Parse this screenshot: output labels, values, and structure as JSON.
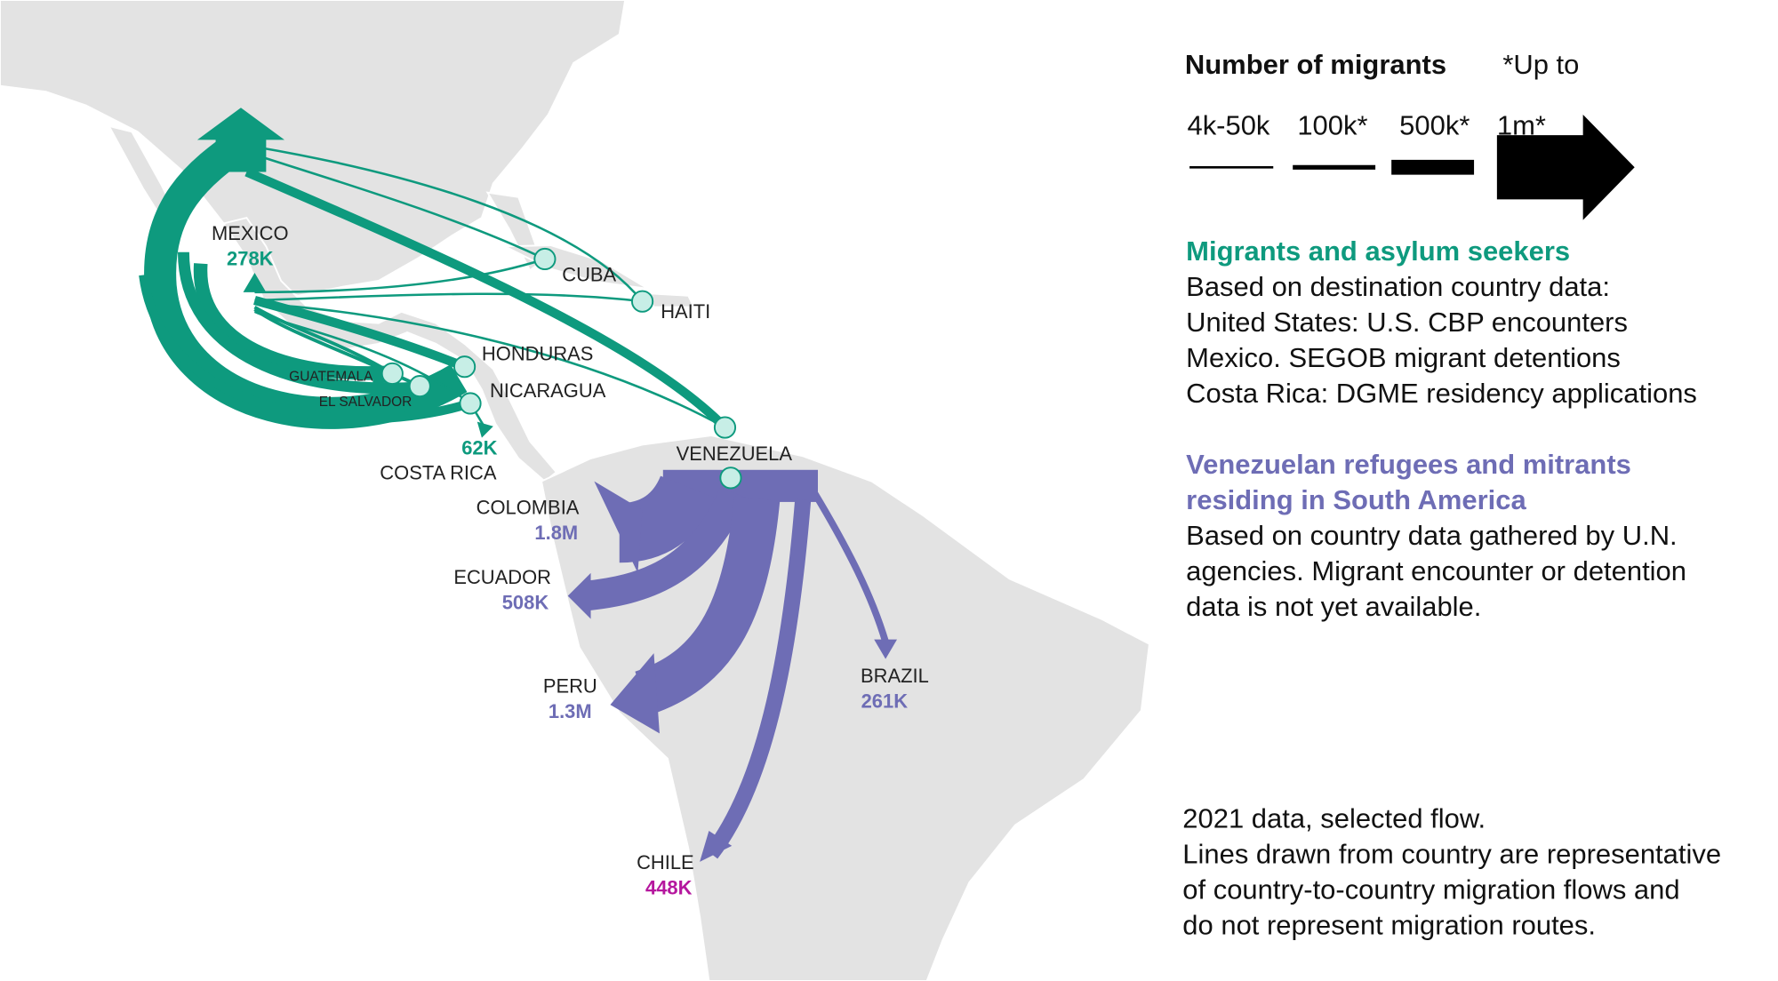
{
  "legend": {
    "title": "Number of migrants",
    "note": "*Up to",
    "sizes": [
      "4k-50k",
      "100k*",
      "500k*",
      "1m*"
    ]
  },
  "sections": [
    {
      "title": [
        "Migrants and asylum seekers"
      ],
      "lines": [
        "Based on destination country data:",
        "United States: U.S. CBP encounters",
        "Mexico. SEGOB migrant detentions",
        "Costa Rica: DGME residency applications"
      ]
    },
    {
      "title": [
        "Venezuelan refugees and mitrants",
        "residing in South America"
      ],
      "lines": [
        "Based on country data gathered by U.N.",
        "agencies. Migrant encounter or detention",
        "data is not yet available."
      ]
    }
  ],
  "footnote": [
    "2021 data, selected flow.",
    "Lines drawn from country are representative",
    "of country-to-country migration flows and",
    "do not represent migration routes."
  ],
  "places": [
    {
      "name": "MEXICO",
      "value": "278K"
    },
    {
      "name": "CUBA"
    },
    {
      "name": "HAITI"
    },
    {
      "name": "HONDURAS"
    },
    {
      "name": "GUATEMALA"
    },
    {
      "name": "EL SALVADOR"
    },
    {
      "name": "NICARAGUA"
    },
    {
      "name": "COSTA RICA",
      "value": "62K"
    },
    {
      "name": "VENEZUELA"
    },
    {
      "name": "COLOMBIA",
      "value": "1.8M"
    },
    {
      "name": "ECUADOR",
      "value": "508K"
    },
    {
      "name": "PERU",
      "value": "1.3M"
    },
    {
      "name": "BRAZIL",
      "value": "261K"
    },
    {
      "name": "CHILE",
      "value": "448K"
    }
  ]
}
